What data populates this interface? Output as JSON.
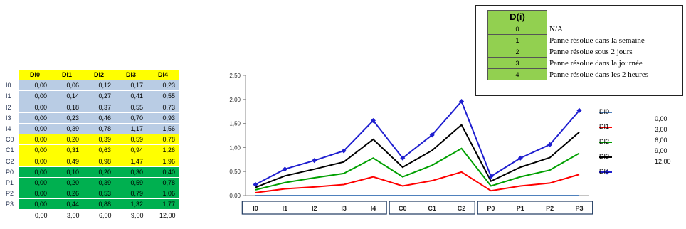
{
  "table": {
    "headers": [
      "DI0",
      "DI1",
      "DI2",
      "DI3",
      "DI4"
    ],
    "rows": [
      {
        "label": "I0",
        "group": "I",
        "values": [
          "0,00",
          "0,06",
          "0,12",
          "0,17",
          "0,23"
        ]
      },
      {
        "label": "I1",
        "group": "I",
        "values": [
          "0,00",
          "0,14",
          "0,27",
          "0,41",
          "0,55"
        ]
      },
      {
        "label": "I2",
        "group": "I",
        "values": [
          "0,00",
          "0,18",
          "0,37",
          "0,55",
          "0,73"
        ]
      },
      {
        "label": "I3",
        "group": "I",
        "values": [
          "0,00",
          "0,23",
          "0,46",
          "0,70",
          "0,93"
        ]
      },
      {
        "label": "I4",
        "group": "I",
        "values": [
          "0,00",
          "0,39",
          "0,78",
          "1,17",
          "1,56"
        ]
      },
      {
        "label": "C0",
        "group": "C",
        "values": [
          "0,00",
          "0,20",
          "0,39",
          "0,59",
          "0,78"
        ]
      },
      {
        "label": "C1",
        "group": "C",
        "values": [
          "0,00",
          "0,31",
          "0,63",
          "0,94",
          "1,26"
        ]
      },
      {
        "label": "C2",
        "group": "C",
        "values": [
          "0,00",
          "0,49",
          "0,98",
          "1,47",
          "1,96"
        ]
      },
      {
        "label": "P0",
        "group": "P",
        "values": [
          "0,00",
          "0,10",
          "0,20",
          "0,30",
          "0,40"
        ]
      },
      {
        "label": "P1",
        "group": "P",
        "values": [
          "0,00",
          "0,20",
          "0,39",
          "0,59",
          "0,78"
        ]
      },
      {
        "label": "P2",
        "group": "P",
        "values": [
          "0,00",
          "0,26",
          "0,53",
          "0,79",
          "1,06"
        ]
      },
      {
        "label": "P3",
        "group": "P",
        "values": [
          "0,00",
          "0,44",
          "0,88",
          "1,32",
          "1,77"
        ]
      }
    ],
    "footer": [
      "0,00",
      "3,00",
      "6,00",
      "9,00",
      "12,00"
    ],
    "colors": {
      "I": "#b9cce4",
      "C": "#ffff00",
      "P": "#00b050",
      "header": "#ffff00"
    }
  },
  "chart_data": {
    "type": "line",
    "categories": [
      "I0",
      "I1",
      "I2",
      "I3",
      "I4",
      "C0",
      "C1",
      "C2",
      "P0",
      "P1",
      "P2",
      "P3"
    ],
    "category_groups": [
      [
        "I0",
        "I1",
        "I2",
        "I3",
        "I4"
      ],
      [
        "C0",
        "C1",
        "C2"
      ],
      [
        "P0",
        "P1",
        "P2",
        "P3"
      ]
    ],
    "ylim": [
      0,
      2.5
    ],
    "yticks": [
      "0,00",
      "0,50",
      "1,00",
      "1,50",
      "2,00",
      "2,50"
    ],
    "series": [
      {
        "name": "DI0",
        "color": "#4f81bd",
        "values": [
          0,
          0,
          0,
          0,
          0,
          0,
          0,
          0,
          0,
          0,
          0,
          0
        ]
      },
      {
        "name": "DI1",
        "color": "#ff0000",
        "values": [
          0.06,
          0.14,
          0.18,
          0.23,
          0.39,
          0.2,
          0.31,
          0.49,
          0.1,
          0.2,
          0.26,
          0.44
        ]
      },
      {
        "name": "DI2",
        "color": "#00a000",
        "values": [
          0.12,
          0.27,
          0.37,
          0.46,
          0.78,
          0.39,
          0.63,
          0.98,
          0.2,
          0.39,
          0.53,
          0.88
        ]
      },
      {
        "name": "DI3",
        "color": "#000000",
        "values": [
          0.17,
          0.41,
          0.55,
          0.7,
          1.17,
          0.59,
          0.94,
          1.47,
          0.3,
          0.59,
          0.79,
          1.32
        ]
      },
      {
        "name": "DI4",
        "color": "#1f1fd0",
        "values": [
          0.23,
          0.55,
          0.73,
          0.93,
          1.56,
          0.78,
          1.26,
          1.96,
          0.4,
          0.78,
          1.06,
          1.77
        ],
        "markers": true
      }
    ],
    "legend_values": [
      "0,00",
      "3,00",
      "6,00",
      "9,00",
      "12,00"
    ],
    "legend_position": "right",
    "grid": false
  },
  "d_table": {
    "header": "D(i)",
    "rows": [
      {
        "code": "0",
        "desc": "N/A"
      },
      {
        "code": "1",
        "desc": "Panne résolue dans  la semaine"
      },
      {
        "code": "2",
        "desc": "Panne résolue sous 2 jours"
      },
      {
        "code": "3",
        "desc": "Panne résolue dans la journée"
      },
      {
        "code": "4",
        "desc": "Panne résolue dans les 2 heures"
      }
    ]
  }
}
